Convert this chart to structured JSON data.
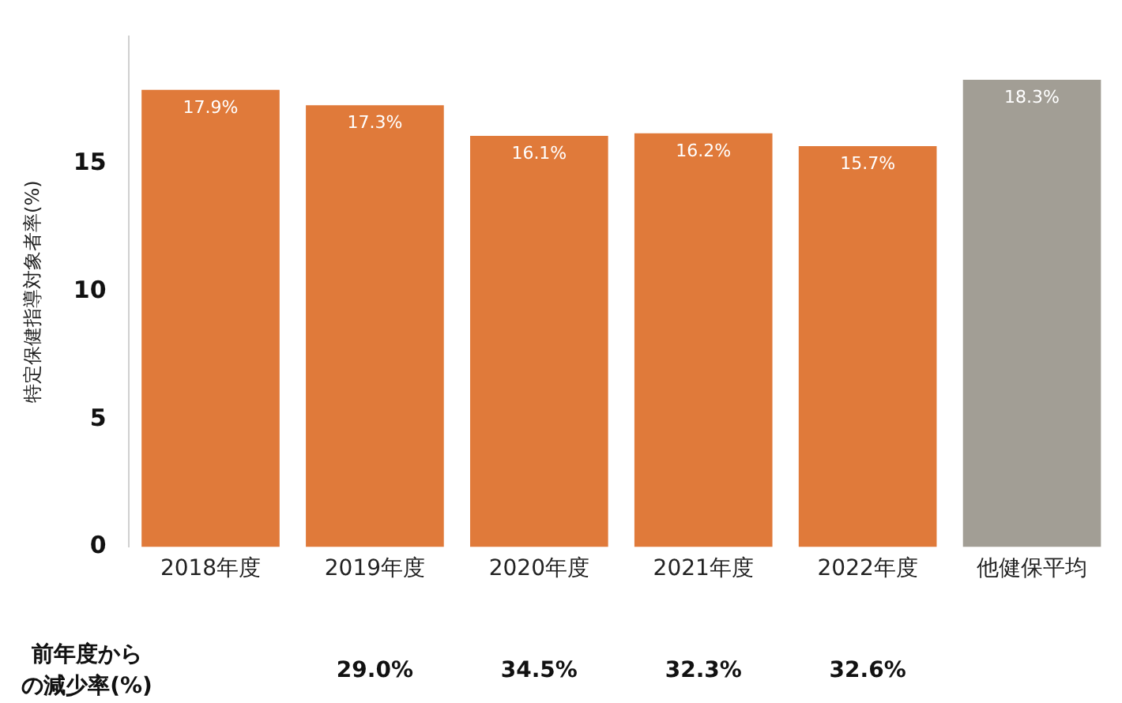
{
  "chart_data": {
    "type": "bar",
    "ylabel": "特定保健指導対象者率(%)",
    "categories": [
      "2018年度",
      "2019年度",
      "2020年度",
      "2021年度",
      "2022年度",
      "他健保平均"
    ],
    "values": [
      17.9,
      17.3,
      16.1,
      16.2,
      15.7,
      18.3
    ],
    "colors": [
      "#e07a3a",
      "#e07a3a",
      "#e07a3a",
      "#e07a3a",
      "#e07a3a",
      "#a29e95"
    ],
    "value_labels": [
      "17.9%",
      "17.3%",
      "16.1%",
      "16.2%",
      "15.7%",
      "18.3%"
    ],
    "ylim": [
      0,
      20
    ],
    "yticks": [
      0,
      5,
      10,
      15
    ],
    "grid": false,
    "legend": false,
    "annotations": [
      "前年度からの減少率(%)",
      "29.0%",
      "34.5%",
      "32.3%",
      "32.6%"
    ]
  }
}
